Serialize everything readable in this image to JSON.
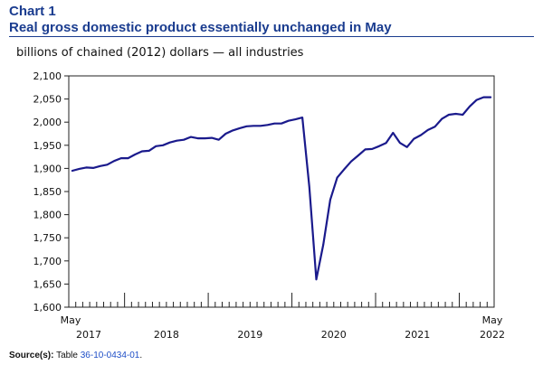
{
  "header": {
    "chart_label": "Chart 1",
    "title": "Real gross domestic product essentially unchanged in May",
    "subtitle": "billions of chained (2012) dollars — all industries"
  },
  "source": {
    "label": "Source(s):",
    "text": "Table ",
    "link": "36-10-0434-01",
    "suffix": "."
  },
  "chart_data": {
    "type": "line",
    "title": "Real gross domestic product essentially unchanged in May",
    "ylabel": "billions of chained (2012) dollars — all industries",
    "xlabel": "",
    "ylim": [
      1600,
      2100
    ],
    "yticks": [
      1600,
      1650,
      1700,
      1750,
      1800,
      1850,
      1900,
      1950,
      2000,
      2050,
      2100
    ],
    "ytick_labels": [
      "1,600",
      "1,650",
      "1,700",
      "1,750",
      "1,800",
      "1,850",
      "1,900",
      "1,950",
      "2,000",
      "2,050",
      "2,100"
    ],
    "x_start_label": "May",
    "x_end_label": "May",
    "year_labels": [
      "2017",
      "2018",
      "2019",
      "2020",
      "2021",
      "2022"
    ],
    "x": [
      "2017-05",
      "2017-06",
      "2017-07",
      "2017-08",
      "2017-09",
      "2017-10",
      "2017-11",
      "2017-12",
      "2018-01",
      "2018-02",
      "2018-03",
      "2018-04",
      "2018-05",
      "2018-06",
      "2018-07",
      "2018-08",
      "2018-09",
      "2018-10",
      "2018-11",
      "2018-12",
      "2019-01",
      "2019-02",
      "2019-03",
      "2019-04",
      "2019-05",
      "2019-06",
      "2019-07",
      "2019-08",
      "2019-09",
      "2019-10",
      "2019-11",
      "2019-12",
      "2020-01",
      "2020-02",
      "2020-03",
      "2020-04",
      "2020-05",
      "2020-06",
      "2020-07",
      "2020-08",
      "2020-09",
      "2020-10",
      "2020-11",
      "2020-12",
      "2021-01",
      "2021-02",
      "2021-03",
      "2021-04",
      "2021-05",
      "2021-06",
      "2021-07",
      "2021-08",
      "2021-09",
      "2021-10",
      "2021-11",
      "2021-12",
      "2022-01",
      "2022-02",
      "2022-03",
      "2022-04",
      "2022-05"
    ],
    "series": [
      {
        "color": "#1a1a8c",
        "values": [
          1895,
          1899,
          1902,
          1901,
          1905,
          1908,
          1916,
          1922,
          1922,
          1930,
          1937,
          1938,
          1948,
          1950,
          1956,
          1960,
          1962,
          1968,
          1965,
          1965,
          1966,
          1962,
          1975,
          1982,
          1987,
          1991,
          1992,
          1992,
          1994,
          1997,
          1997,
          2003,
          2006,
          2010,
          1860,
          1660,
          1735,
          1832,
          1880,
          1898,
          1915,
          1928,
          1941,
          1942,
          1948,
          1955,
          1977,
          1955,
          1946,
          1964,
          1972,
          1983,
          1990,
          2007,
          2016,
          2018,
          2016,
          2034,
          2048,
          2054,
          2054
        ]
      }
    ],
    "grid": false,
    "legend": "none"
  }
}
